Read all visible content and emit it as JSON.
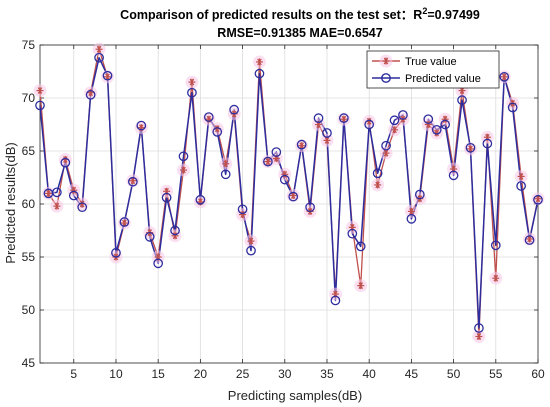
{
  "chart_data": {
    "type": "line",
    "title_prefix": "Comparison of predicted results on the test set：R",
    "title_sup": "2",
    "title_suffix": "=0.97499",
    "subtitle": "RMSE=0.91385 MAE=0.6547",
    "xlabel": "Predicting samples(dB)",
    "ylabel": "Predicted results(dB)",
    "xlim": [
      1,
      60
    ],
    "ylim": [
      45,
      75
    ],
    "xticks": [
      5,
      10,
      15,
      20,
      25,
      30,
      35,
      40,
      45,
      50,
      55,
      60
    ],
    "yticks": [
      45,
      50,
      55,
      60,
      65,
      70,
      75
    ],
    "grid": true,
    "legend_position": "top-right",
    "x": [
      1,
      2,
      3,
      4,
      5,
      6,
      7,
      8,
      9,
      10,
      11,
      12,
      13,
      14,
      15,
      16,
      17,
      18,
      19,
      20,
      21,
      22,
      23,
      24,
      25,
      26,
      27,
      28,
      29,
      30,
      31,
      32,
      33,
      34,
      35,
      36,
      37,
      38,
      39,
      40,
      41,
      42,
      43,
      44,
      45,
      46,
      47,
      48,
      49,
      50,
      51,
      52,
      53,
      54,
      55,
      56,
      57,
      58,
      59,
      60
    ],
    "series": [
      {
        "name": "True value",
        "color": "#c0504d",
        "marker": "asterisk",
        "values": [
          70.7,
          61.0,
          59.8,
          64.2,
          61.3,
          60.0,
          70.5,
          74.6,
          72.0,
          55.0,
          58.2,
          62.2,
          67.2,
          57.3,
          55.0,
          61.2,
          57.0,
          63.2,
          71.5,
          60.2,
          68.0,
          67.1,
          63.8,
          68.5,
          59.0,
          56.5,
          73.4,
          64.0,
          64.3,
          62.8,
          60.8,
          65.5,
          59.3,
          67.5,
          66.0,
          51.5,
          68.0,
          57.8,
          52.3,
          67.8,
          61.8,
          64.8,
          67.0,
          68.0,
          59.3,
          60.5,
          67.5,
          66.7,
          68.0,
          63.3,
          70.7,
          65.2,
          47.5,
          66.3,
          53.0,
          72.0,
          69.5,
          62.6,
          56.7,
          60.5
        ]
      },
      {
        "name": "Predicted value",
        "color": "#2d2d9e",
        "marker": "circle",
        "values": [
          69.3,
          61.0,
          61.1,
          63.9,
          60.8,
          59.7,
          70.3,
          73.8,
          72.1,
          55.4,
          58.3,
          62.1,
          67.4,
          56.9,
          54.4,
          60.6,
          57.5,
          64.5,
          70.5,
          60.4,
          68.2,
          66.8,
          62.8,
          68.9,
          59.5,
          55.6,
          72.3,
          64.0,
          64.9,
          62.3,
          60.7,
          65.6,
          59.7,
          68.1,
          66.7,
          50.9,
          68.1,
          57.2,
          56.0,
          67.5,
          62.9,
          65.5,
          67.9,
          68.4,
          58.6,
          60.9,
          68.0,
          67.0,
          67.5,
          62.7,
          69.8,
          65.3,
          48.3,
          65.7,
          56.1,
          72.0,
          69.1,
          61.7,
          56.6,
          60.4
        ]
      }
    ]
  }
}
